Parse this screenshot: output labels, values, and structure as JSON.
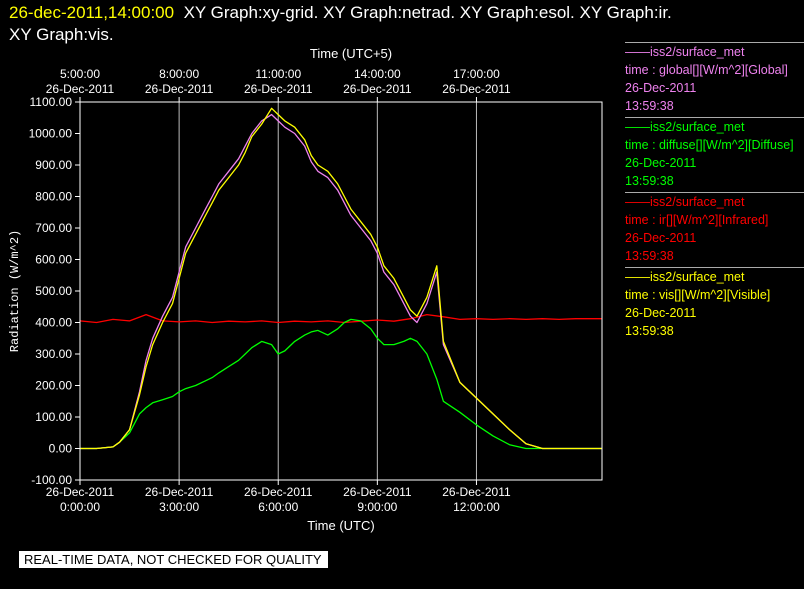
{
  "header": {
    "timestamp": "26-dec-2011,14:00:00",
    "graphs": "XY Graph:xy-grid.  XY Graph:netrad.  XY Graph:esol.  XY Graph:ir.",
    "graphs_line2": "XY Graph:vis."
  },
  "footer": {
    "qc_banner": "REAL-TIME DATA, NOT CHECKED FOR QUALITY"
  },
  "legend": [
    {
      "source": "iss2/surface_met",
      "label": "time : global[][W/m^2][Global]",
      "date": "26-Dec-2011",
      "time": "13:59:38",
      "color": "#ee82ee"
    },
    {
      "source": "iss2/surface_met",
      "label": "time : diffuse[][W/m^2][Diffuse]",
      "date": "26-Dec-2011",
      "time": "13:59:38",
      "color": "#00ff00"
    },
    {
      "source": "iss2/surface_met",
      "label": "time : ir[][W/m^2][Infrared]",
      "date": "26-Dec-2011",
      "time": "13:59:38",
      "color": "#ff0000"
    },
    {
      "source": "iss2/surface_met",
      "label": "time : vis[][W/m^2][Visible]",
      "date": "26-Dec-2011",
      "time": "13:59:38",
      "color": "#ffff00"
    }
  ],
  "chart_data": {
    "type": "line",
    "xlabel": "Time (UTC)",
    "x2label": "Time (UTC+5)",
    "ylabel": "Radiation (W/m^2)",
    "ylim": [
      -100,
      1100
    ],
    "xlim_hours_utc": [
      0,
      15.8
    ],
    "grid": "vertical",
    "yticks": [
      "-100.00",
      "0.00",
      "100.00",
      "200.00",
      "300.00",
      "400.00",
      "500.00",
      "600.00",
      "700.00",
      "800.00",
      "900.00",
      "1000.00",
      "1100.00"
    ],
    "yticks_values": [
      -100,
      0,
      100,
      200,
      300,
      400,
      500,
      600,
      700,
      800,
      900,
      1000,
      1100
    ],
    "xticks_bottom": [
      {
        "hour": 0,
        "date": "26-Dec-2011",
        "time": "0:00:00"
      },
      {
        "hour": 3,
        "date": "26-Dec-2011",
        "time": "3:00:00"
      },
      {
        "hour": 6,
        "date": "26-Dec-2011",
        "time": "6:00:00"
      },
      {
        "hour": 9,
        "date": "26-Dec-2011",
        "time": "9:00:00"
      },
      {
        "hour": 12,
        "date": "26-Dec-2011",
        "time": "12:00:00"
      }
    ],
    "xticks_top": [
      {
        "hour": 0,
        "time": "5:00:00",
        "date": "26-Dec-2011"
      },
      {
        "hour": 3,
        "time": "8:00:00",
        "date": "26-Dec-2011"
      },
      {
        "hour": 6,
        "time": "11:00:00",
        "date": "26-Dec-2011"
      },
      {
        "hour": 9,
        "time": "14:00:00",
        "date": "26-Dec-2011"
      },
      {
        "hour": 12,
        "time": "17:00:00",
        "date": "26-Dec-2011"
      }
    ],
    "series": [
      {
        "name": "global",
        "color": "#ee82ee",
        "x": [
          0,
          0.5,
          1.0,
          1.2,
          1.5,
          1.8,
          2.0,
          2.2,
          2.5,
          2.8,
          3.0,
          3.2,
          3.5,
          3.8,
          4.0,
          4.2,
          4.5,
          4.8,
          5.0,
          5.2,
          5.5,
          5.8,
          6.0,
          6.2,
          6.5,
          6.8,
          7.0,
          7.2,
          7.5,
          7.8,
          8.0,
          8.2,
          8.5,
          8.8,
          9.0,
          9.2,
          9.5,
          9.8,
          10.0,
          10.2,
          10.5,
          10.8,
          11.0,
          11.5,
          12.0,
          12.5,
          13.0,
          13.5,
          14.0,
          14.5,
          15.0,
          15.8
        ],
        "y": [
          0,
          0,
          5,
          20,
          60,
          180,
          280,
          350,
          420,
          480,
          560,
          640,
          700,
          760,
          800,
          840,
          880,
          920,
          960,
          1000,
          1040,
          1060,
          1040,
          1020,
          1000,
          960,
          910,
          880,
          860,
          820,
          780,
          740,
          700,
          660,
          620,
          560,
          520,
          460,
          420,
          400,
          460,
          560,
          330,
          210,
          160,
          110,
          60,
          15,
          0,
          0,
          0,
          0
        ]
      },
      {
        "name": "diffuse",
        "color": "#00ff00",
        "x": [
          0,
          0.5,
          1.0,
          1.2,
          1.5,
          1.8,
          2.0,
          2.2,
          2.5,
          2.8,
          3.0,
          3.2,
          3.5,
          3.8,
          4.0,
          4.2,
          4.5,
          4.8,
          5.0,
          5.2,
          5.5,
          5.8,
          6.0,
          6.2,
          6.5,
          6.8,
          7.0,
          7.2,
          7.5,
          7.8,
          8.0,
          8.2,
          8.5,
          8.8,
          9.0,
          9.2,
          9.5,
          9.8,
          10.0,
          10.2,
          10.5,
          10.8,
          11.0,
          11.5,
          12.0,
          12.5,
          13.0,
          13.5,
          14.0,
          14.5,
          15.0,
          15.8
        ],
        "y": [
          0,
          0,
          5,
          20,
          50,
          110,
          130,
          145,
          155,
          165,
          180,
          190,
          200,
          215,
          225,
          240,
          260,
          280,
          300,
          320,
          340,
          330,
          300,
          310,
          340,
          360,
          370,
          375,
          360,
          380,
          400,
          410,
          405,
          380,
          350,
          330,
          330,
          340,
          350,
          340,
          300,
          220,
          150,
          115,
          75,
          40,
          12,
          0,
          0,
          0,
          0,
          0
        ]
      },
      {
        "name": "ir",
        "color": "#ff0000",
        "x": [
          0,
          0.5,
          1.0,
          1.5,
          2.0,
          2.5,
          3.0,
          3.5,
          4.0,
          4.5,
          5.0,
          5.5,
          6.0,
          6.5,
          7.0,
          7.5,
          8.0,
          8.5,
          9.0,
          9.5,
          10.0,
          10.5,
          11.0,
          11.5,
          12.0,
          12.5,
          13.0,
          13.5,
          14.0,
          14.5,
          15.0,
          15.8
        ],
        "y": [
          405,
          400,
          410,
          405,
          425,
          405,
          402,
          405,
          400,
          404,
          402,
          405,
          400,
          404,
          402,
          405,
          400,
          404,
          408,
          404,
          412,
          425,
          418,
          410,
          412,
          410,
          412,
          410,
          412,
          410,
          412,
          412
        ]
      },
      {
        "name": "vis",
        "color": "#ffff00",
        "x": [
          0,
          0.5,
          1.0,
          1.2,
          1.5,
          1.8,
          2.0,
          2.2,
          2.5,
          2.8,
          3.0,
          3.2,
          3.5,
          3.8,
          4.0,
          4.2,
          4.5,
          4.8,
          5.0,
          5.2,
          5.5,
          5.8,
          6.0,
          6.2,
          6.5,
          6.8,
          7.0,
          7.2,
          7.5,
          7.8,
          8.0,
          8.2,
          8.5,
          8.8,
          9.0,
          9.2,
          9.5,
          9.8,
          10.0,
          10.2,
          10.5,
          10.8,
          11.0,
          11.5,
          12.0,
          12.5,
          13.0,
          13.5,
          14.0,
          14.5,
          15.0,
          15.8
        ],
        "y": [
          0,
          0,
          5,
          20,
          60,
          170,
          260,
          330,
          400,
          460,
          540,
          620,
          680,
          740,
          780,
          820,
          860,
          900,
          940,
          990,
          1030,
          1080,
          1060,
          1040,
          1020,
          980,
          930,
          900,
          880,
          840,
          800,
          760,
          720,
          680,
          640,
          580,
          540,
          480,
          440,
          420,
          480,
          580,
          340,
          210,
          160,
          110,
          60,
          15,
          0,
          0,
          0,
          0
        ]
      }
    ]
  }
}
